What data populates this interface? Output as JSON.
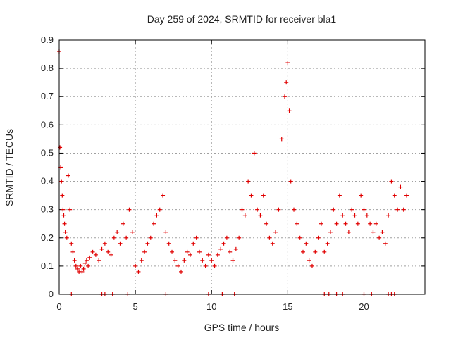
{
  "chart_data": {
    "type": "scatter",
    "title": "Day 259 of 2024, SRMTID for receiver bla1",
    "xlabel": "GPS time / hours",
    "ylabel": "SRMTID / TECUs",
    "xlim": [
      0,
      24
    ],
    "ylim": [
      0,
      0.9
    ],
    "xticks": [
      0,
      5,
      10,
      15,
      20
    ],
    "xtick_labels": [
      "0",
      "5",
      "10",
      "15",
      "20"
    ],
    "yticks": [
      0,
      0.1,
      0.2,
      0.3,
      0.4,
      0.5,
      0.6,
      0.7,
      0.8,
      0.9
    ],
    "ytick_labels": [
      "0",
      "0.1",
      "0.2",
      "0.3",
      "0.4",
      "0.5",
      "0.6",
      "0.7",
      "0.8",
      "0.9"
    ],
    "grid": true,
    "marker": "+",
    "color": "#e00000",
    "series": [
      {
        "name": "SRMTID",
        "x": [
          0.0,
          0.05,
          0.1,
          0.15,
          0.2,
          0.25,
          0.3,
          0.35,
          0.4,
          0.5,
          0.6,
          0.7,
          0.8,
          0.9,
          1.0,
          1.1,
          1.2,
          1.3,
          1.4,
          1.5,
          1.6,
          1.7,
          1.8,
          1.9,
          2.0,
          2.2,
          2.4,
          2.6,
          2.8,
          3.0,
          3.2,
          3.4,
          3.6,
          3.8,
          4.0,
          4.2,
          4.4,
          4.6,
          4.8,
          5.0,
          5.2,
          5.4,
          5.6,
          5.8,
          6.0,
          6.2,
          6.4,
          6.6,
          6.8,
          7.0,
          7.2,
          7.4,
          7.6,
          7.8,
          8.0,
          8.2,
          8.4,
          8.6,
          8.8,
          9.0,
          9.2,
          9.4,
          9.6,
          9.8,
          10.0,
          10.2,
          10.4,
          10.6,
          10.8,
          11.0,
          11.2,
          11.4,
          11.6,
          11.8,
          12.0,
          12.2,
          12.4,
          12.6,
          12.8,
          13.0,
          13.2,
          13.4,
          13.6,
          13.8,
          14.0,
          14.2,
          14.4,
          14.6,
          14.8,
          14.9,
          15.0,
          15.1,
          15.2,
          15.4,
          15.6,
          15.8,
          16.0,
          16.2,
          16.4,
          16.6,
          16.8,
          17.0,
          17.2,
          17.4,
          17.6,
          17.8,
          18.0,
          18.2,
          18.4,
          18.6,
          18.8,
          19.0,
          19.2,
          19.4,
          19.6,
          19.8,
          20.0,
          20.2,
          20.4,
          20.6,
          20.8,
          21.0,
          21.2,
          21.4,
          21.6,
          21.8,
          22.0,
          22.2,
          22.4,
          22.6,
          22.8
        ],
        "y": [
          0.86,
          0.52,
          0.45,
          0.4,
          0.35,
          0.3,
          0.28,
          0.25,
          0.22,
          0.2,
          0.42,
          0.3,
          0.18,
          0.15,
          0.12,
          0.1,
          0.09,
          0.08,
          0.1,
          0.08,
          0.09,
          0.11,
          0.12,
          0.1,
          0.13,
          0.15,
          0.14,
          0.12,
          0.16,
          0.18,
          0.15,
          0.14,
          0.2,
          0.22,
          0.18,
          0.25,
          0.2,
          0.3,
          0.22,
          0.1,
          0.08,
          0.12,
          0.15,
          0.18,
          0.2,
          0.25,
          0.28,
          0.3,
          0.35,
          0.22,
          0.18,
          0.15,
          0.12,
          0.1,
          0.08,
          0.12,
          0.15,
          0.14,
          0.18,
          0.2,
          0.15,
          0.12,
          0.1,
          0.14,
          0.12,
          0.1,
          0.14,
          0.16,
          0.18,
          0.2,
          0.15,
          0.12,
          0.16,
          0.2,
          0.3,
          0.28,
          0.4,
          0.35,
          0.5,
          0.3,
          0.28,
          0.35,
          0.25,
          0.2,
          0.18,
          0.22,
          0.3,
          0.55,
          0.7,
          0.75,
          0.82,
          0.65,
          0.4,
          0.3,
          0.25,
          0.2,
          0.15,
          0.18,
          0.12,
          0.1,
          0.15,
          0.2,
          0.25,
          0.15,
          0.18,
          0.22,
          0.3,
          0.25,
          0.35,
          0.28,
          0.25,
          0.22,
          0.3,
          0.28,
          0.25,
          0.35,
          0.3,
          0.28,
          0.25,
          0.22,
          0.25,
          0.2,
          0.22,
          0.18,
          0.28,
          0.4,
          0.35,
          0.3,
          0.38,
          0.3,
          0.35
        ]
      }
    ],
    "zero_x": [
      0.8,
      2.8,
      3.0,
      3.5,
      4.5,
      7.0,
      9.8,
      10.7,
      11.5,
      17.4,
      17.7,
      18.2,
      18.6,
      20.0,
      20.5,
      21.6,
      21.8,
      22.0
    ]
  }
}
